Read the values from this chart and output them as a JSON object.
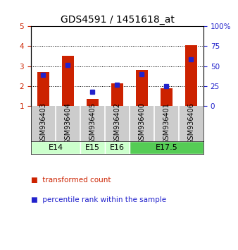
{
  "title": "GDS4591 / 1451618_at",
  "samples": [
    "GSM936403",
    "GSM936404",
    "GSM936405",
    "GSM936402",
    "GSM936400",
    "GSM936401",
    "GSM936406"
  ],
  "red_values": [
    2.7,
    3.5,
    1.35,
    2.15,
    2.8,
    1.9,
    4.05
  ],
  "blue_values": [
    2.55,
    3.07,
    1.72,
    2.07,
    2.6,
    2.0,
    3.35
  ],
  "age_groups": [
    {
      "label": "E14",
      "start": 0,
      "end": 2,
      "color": "#ccffcc"
    },
    {
      "label": "E15",
      "start": 2,
      "end": 3,
      "color": "#ccffcc"
    },
    {
      "label": "E16",
      "start": 3,
      "end": 4,
      "color": "#ccffcc"
    },
    {
      "label": "E17.5",
      "start": 4,
      "end": 7,
      "color": "#55cc55"
    }
  ],
  "ylim_left": [
    1,
    5
  ],
  "ylim_right": [
    0,
    100
  ],
  "yticks_left": [
    1,
    2,
    3,
    4,
    5
  ],
  "yticks_right": [
    0,
    25,
    50,
    75,
    100
  ],
  "yticklabels_right": [
    "0",
    "25",
    "50",
    "75",
    "100%"
  ],
  "bar_color": "#cc2200",
  "dot_color": "#2222cc",
  "bg_color": "#ffffff",
  "sample_bg": "#cccccc",
  "title_fontsize": 10,
  "tick_fontsize": 7.5,
  "label_fontsize": 7,
  "legend_fontsize": 7.5,
  "age_fontsize": 8
}
